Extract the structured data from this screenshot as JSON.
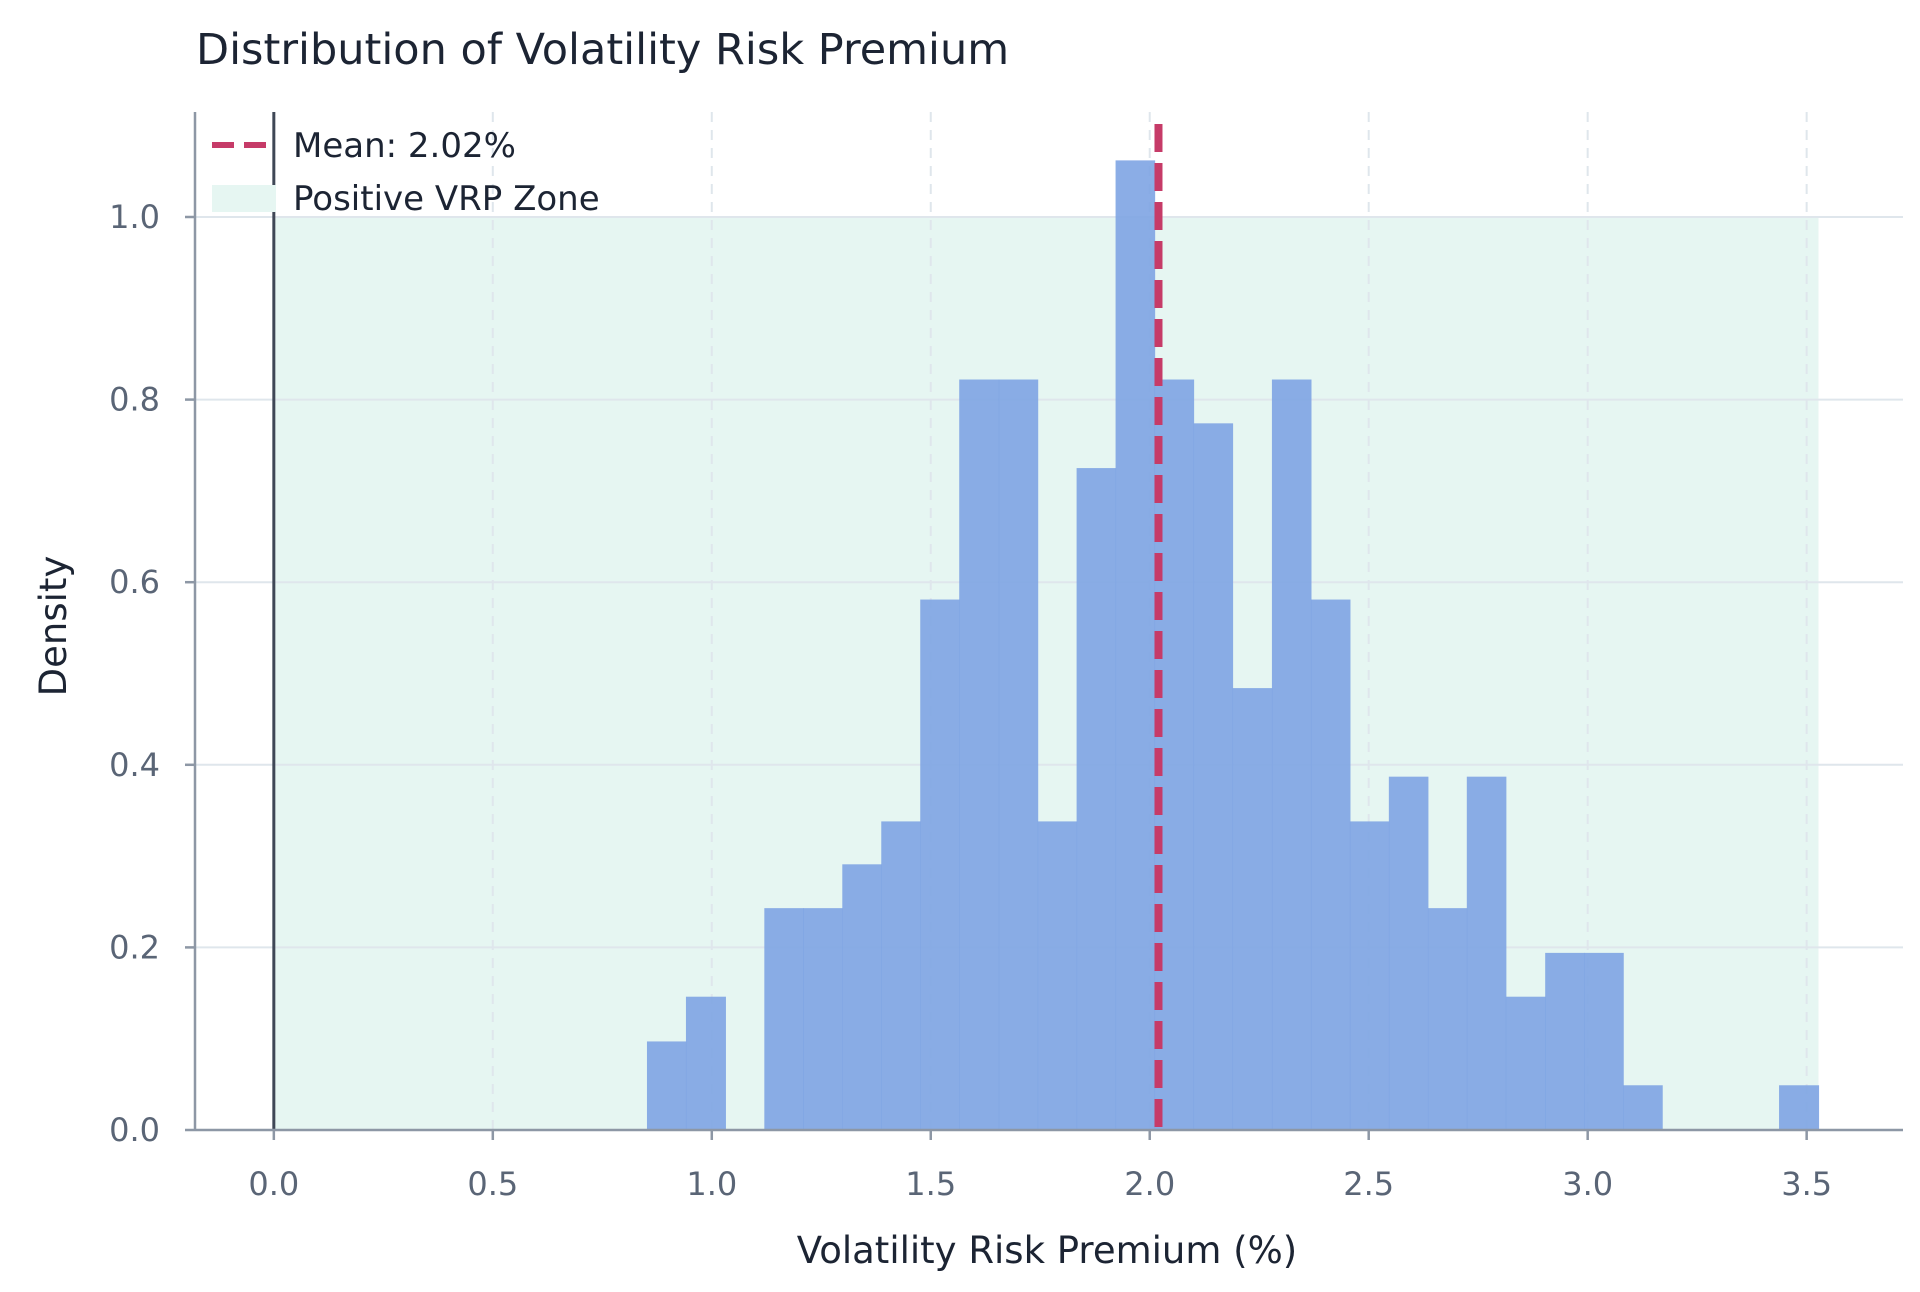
{
  "chart_data": {
    "type": "bar",
    "title": "Distribution of Volatility Risk Premium",
    "xlabel": "Volatility Risk Premium (%)",
    "ylabel": "Density",
    "xlim": [
      -0.18,
      3.72
    ],
    "ylim": [
      0.0,
      1.115
    ],
    "xticks": [
      0.0,
      0.5,
      1.0,
      1.5,
      2.0,
      2.5,
      3.0,
      3.5
    ],
    "xtick_labels": [
      "0.0",
      "0.5",
      "1.0",
      "1.5",
      "2.0",
      "2.5",
      "3.0",
      "3.5"
    ],
    "yticks": [
      0.0,
      0.2,
      0.4,
      0.6,
      0.8,
      1.0
    ],
    "ytick_labels": [
      "0.0",
      "0.2",
      "0.4",
      "0.6",
      "0.8",
      "1.0"
    ],
    "grid": true,
    "legend_position": "top-left",
    "bins": [
      {
        "x0": 0.852,
        "x1": 0.941,
        "density": 0.097
      },
      {
        "x0": 0.941,
        "x1": 1.031,
        "density": 0.146
      },
      {
        "x0": 1.031,
        "x1": 1.12,
        "density": 0.0
      },
      {
        "x0": 1.12,
        "x1": 1.209,
        "density": 0.243
      },
      {
        "x0": 1.209,
        "x1": 1.298,
        "density": 0.243
      },
      {
        "x0": 1.298,
        "x1": 1.387,
        "density": 0.291
      },
      {
        "x0": 1.387,
        "x1": 1.476,
        "density": 0.338
      },
      {
        "x0": 1.476,
        "x1": 1.565,
        "density": 0.581
      },
      {
        "x0": 1.565,
        "x1": 1.655,
        "density": 0.822
      },
      {
        "x0": 1.655,
        "x1": 1.744,
        "density": 0.822
      },
      {
        "x0": 1.744,
        "x1": 1.833,
        "density": 0.338
      },
      {
        "x0": 1.833,
        "x1": 1.922,
        "density": 0.725
      },
      {
        "x0": 1.922,
        "x1": 2.011,
        "density": 1.062
      },
      {
        "x0": 2.011,
        "x1": 2.1,
        "density": 0.822
      },
      {
        "x0": 2.1,
        "x1": 2.189,
        "density": 0.774
      },
      {
        "x0": 2.189,
        "x1": 2.279,
        "density": 0.484
      },
      {
        "x0": 2.279,
        "x1": 2.368,
        "density": 0.822
      },
      {
        "x0": 2.368,
        "x1": 2.457,
        "density": 0.581
      },
      {
        "x0": 2.457,
        "x1": 2.546,
        "density": 0.338
      },
      {
        "x0": 2.546,
        "x1": 2.635,
        "density": 0.387
      },
      {
        "x0": 2.635,
        "x1": 2.724,
        "density": 0.243
      },
      {
        "x0": 2.724,
        "x1": 2.813,
        "density": 0.387
      },
      {
        "x0": 2.813,
        "x1": 2.903,
        "density": 0.146
      },
      {
        "x0": 2.903,
        "x1": 2.992,
        "density": 0.194
      },
      {
        "x0": 2.992,
        "x1": 3.081,
        "density": 0.194
      },
      {
        "x0": 3.081,
        "x1": 3.17,
        "density": 0.049
      },
      {
        "x0": 3.17,
        "x1": 3.259,
        "density": 0.0
      },
      {
        "x0": 3.259,
        "x1": 3.348,
        "density": 0.0
      },
      {
        "x0": 3.348,
        "x1": 3.437,
        "density": 0.0
      },
      {
        "x0": 3.437,
        "x1": 3.527,
        "density": 0.049
      }
    ],
    "mean": 2.02,
    "positive_zone": {
      "x0": 0.0,
      "x1": 3.527,
      "y0": 0.0,
      "y1": 1.0
    },
    "zero_line": 0.0,
    "legend": [
      {
        "label": "Mean: 2.02%",
        "kind": "dashed-line"
      },
      {
        "label": "Positive VRP Zone",
        "kind": "patch"
      }
    ],
    "colors": {
      "bars": "#7ea4e3",
      "mean_line": "#c63b68",
      "positive_zone": "#e6f6f2",
      "zero_line": "#3f4756",
      "grid": "#dfe6ec",
      "axis": "#8d97a5",
      "text": "#1c2433",
      "tick_text": "#5a6576"
    }
  }
}
